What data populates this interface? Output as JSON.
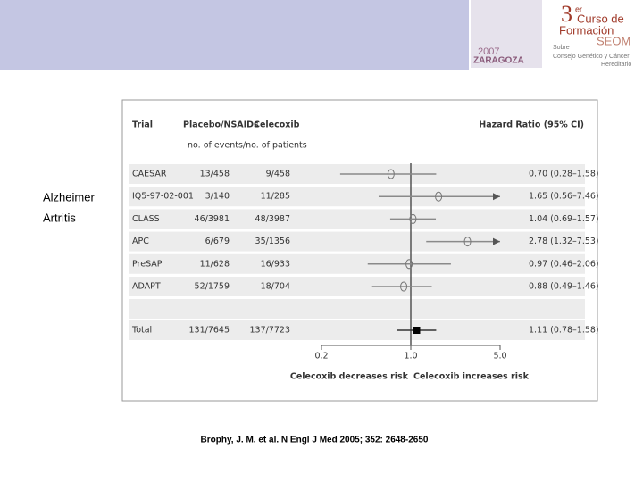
{
  "slide": {
    "labels": [
      "Alzheimer",
      "Artritis"
    ],
    "citation": "Brophy, J. M. et al. N Engl J Med 2005; 352: 2648-2650",
    "logo_lines": [
      "3",
      "er",
      "Curso de",
      "Formación",
      "SEOM",
      "2007",
      "ZARAGOZA",
      "Sobre",
      "Consejo Genético y Cáncer",
      "Hereditario"
    ]
  },
  "chart_data": {
    "type": "forest",
    "headers": {
      "trial": "Trial",
      "group1": "Placebo/NSAIDs",
      "group2": "Celecoxib",
      "subheader": "no. of events/no. of patients",
      "effect": "Hazard Ratio (95% CI)"
    },
    "categories": [
      "CAESAR",
      "IQ5-97-02-001",
      "CLASS",
      "APC",
      "PreSAP",
      "ADAPT"
    ],
    "group1": [
      "13/458",
      "3/140",
      "46/3981",
      "6/679",
      "11/628",
      "52/1759"
    ],
    "group2": [
      "9/458",
      "11/285",
      "48/3987",
      "35/1356",
      "16/933",
      "18/704"
    ],
    "values": [
      0.7,
      1.65,
      1.04,
      2.78,
      0.97,
      0.88
    ],
    "ci_low": [
      0.28,
      0.56,
      0.69,
      1.32,
      0.46,
      0.49
    ],
    "ci_high": [
      1.58,
      7.46,
      1.57,
      7.53,
      2.06,
      1.46
    ],
    "value_labels": [
      "0.70 (0.28–1.58)",
      "1.65 (0.56–7.46)",
      "1.04 (0.69–1.57)",
      "2.78 (1.32–7.53)",
      "0.97 (0.46–2.06)",
      "0.88 (0.49–1.46)"
    ],
    "total": {
      "name": "Total",
      "group1": "131/7645",
      "group2": "137/7723",
      "value": 1.11,
      "ci_low": 0.78,
      "ci_high": 1.58,
      "value_label": "1.11 (0.78–1.58)"
    },
    "log_x": true,
    "xlim": [
      0.2,
      5.0
    ],
    "xticks": [
      0.2,
      {
        "value": 1.0,
        "label": "1.0"
      },
      {
        "value": 5.0,
        "label": "5.0"
      }
    ],
    "x_labels": [
      "Celecoxib decreases risk",
      "Celecoxib increases risk"
    ],
    "color": "#8a8a8a"
  }
}
